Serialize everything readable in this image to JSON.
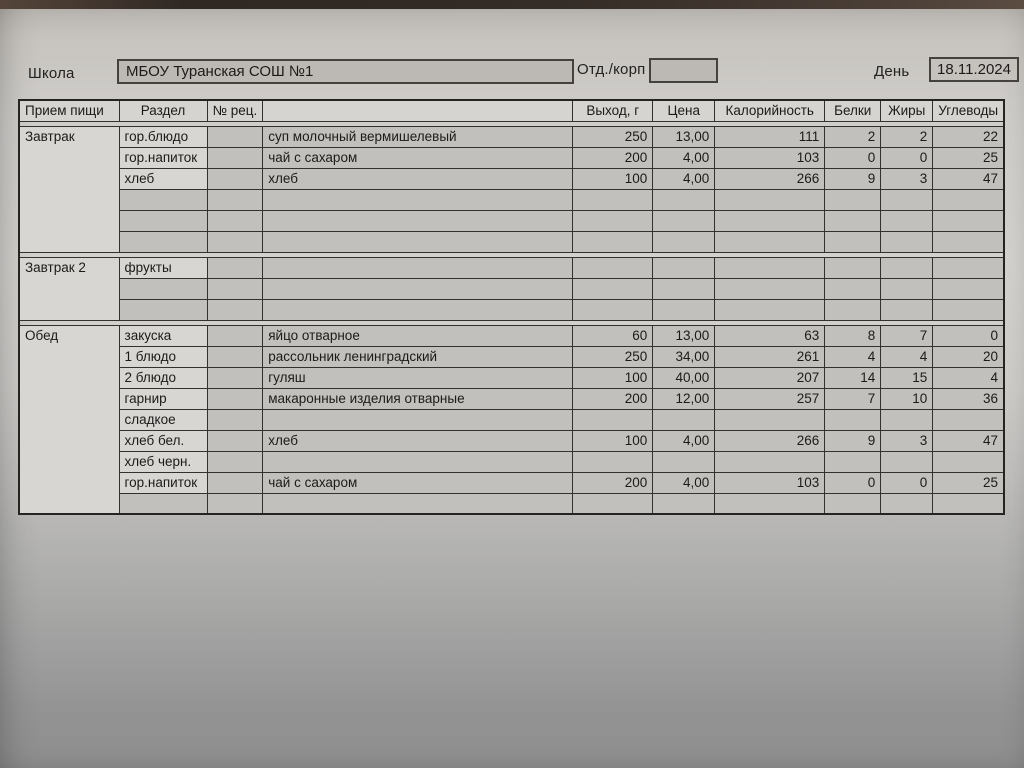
{
  "form": {
    "school_label": "Школа",
    "school_name": "МБОУ Туранская СОШ №1",
    "dept_label": "Отд./корп",
    "dept_value": "",
    "day_label": "День",
    "day_value": "18.11.2024"
  },
  "table": {
    "headers": [
      "Прием пищи",
      "Раздел",
      "№ рец.",
      "",
      "Выход, г",
      "Цена",
      "Калорийность",
      "Белки",
      "Жиры",
      "Углеводы"
    ],
    "sections": [
      {
        "meal": "Завтрак",
        "rows": [
          {
            "razdel": "гор.блюдо",
            "recipe": "",
            "dish": "суп молочный вермишелевый",
            "out": "250",
            "price": "13,00",
            "cal": "111",
            "prot": "2",
            "fat": "2",
            "carb": "22"
          },
          {
            "razdel": "гор.напиток",
            "recipe": "",
            "dish": "чай с сахаром",
            "out": "200",
            "price": "4,00",
            "cal": "103",
            "prot": "0",
            "fat": "0",
            "carb": "25"
          },
          {
            "razdel": "хлеб",
            "recipe": "",
            "dish": "хлеб",
            "out": "100",
            "price": "4,00",
            "cal": "266",
            "prot": "9",
            "fat": "3",
            "carb": "47"
          },
          {},
          {},
          {}
        ]
      },
      {
        "meal": "Завтрак 2",
        "rows": [
          {
            "razdel": "фрукты"
          },
          {},
          {}
        ]
      },
      {
        "meal": "Обед",
        "rows": [
          {
            "razdel": "закуска",
            "recipe": "",
            "dish": "яйцо отварное",
            "out": "60",
            "price": "13,00",
            "cal": "63",
            "prot": "8",
            "fat": "7",
            "carb": "0"
          },
          {
            "razdel": "1 блюдо",
            "recipe": "",
            "dish": "рассольник ленинградский",
            "out": "250",
            "price": "34,00",
            "cal": "261",
            "prot": "4",
            "fat": "4",
            "carb": "20"
          },
          {
            "razdel": "2 блюдо",
            "recipe": "",
            "dish": "гуляш",
            "out": "100",
            "price": "40,00",
            "cal": "207",
            "prot": "14",
            "fat": "15",
            "carb": "4"
          },
          {
            "razdel": "гарнир",
            "recipe": "",
            "dish": "макаронные изделия отварные",
            "out": "200",
            "price": "12,00",
            "cal": "257",
            "prot": "7",
            "fat": "10",
            "carb": "36"
          },
          {
            "razdel": "сладкое"
          },
          {
            "razdel": "хлеб бел.",
            "recipe": "",
            "dish": "хлеб",
            "out": "100",
            "price": "4,00",
            "cal": "266",
            "prot": "9",
            "fat": "3",
            "carb": "47"
          },
          {
            "razdel": "хлеб черн."
          },
          {
            "razdel": "гор.напиток",
            "recipe": "",
            "dish": "чай с сахаром",
            "out": "200",
            "price": "4,00",
            "cal": "103",
            "prot": "0",
            "fat": "0",
            "carb": "25"
          },
          {}
        ]
      }
    ]
  },
  "colors": {
    "paper": "#d2d0cd",
    "cell_gray": "#c2c0bc",
    "cell_light": "#d8d6d2",
    "input_box": "#bcb9b4",
    "border": "#34312c"
  }
}
